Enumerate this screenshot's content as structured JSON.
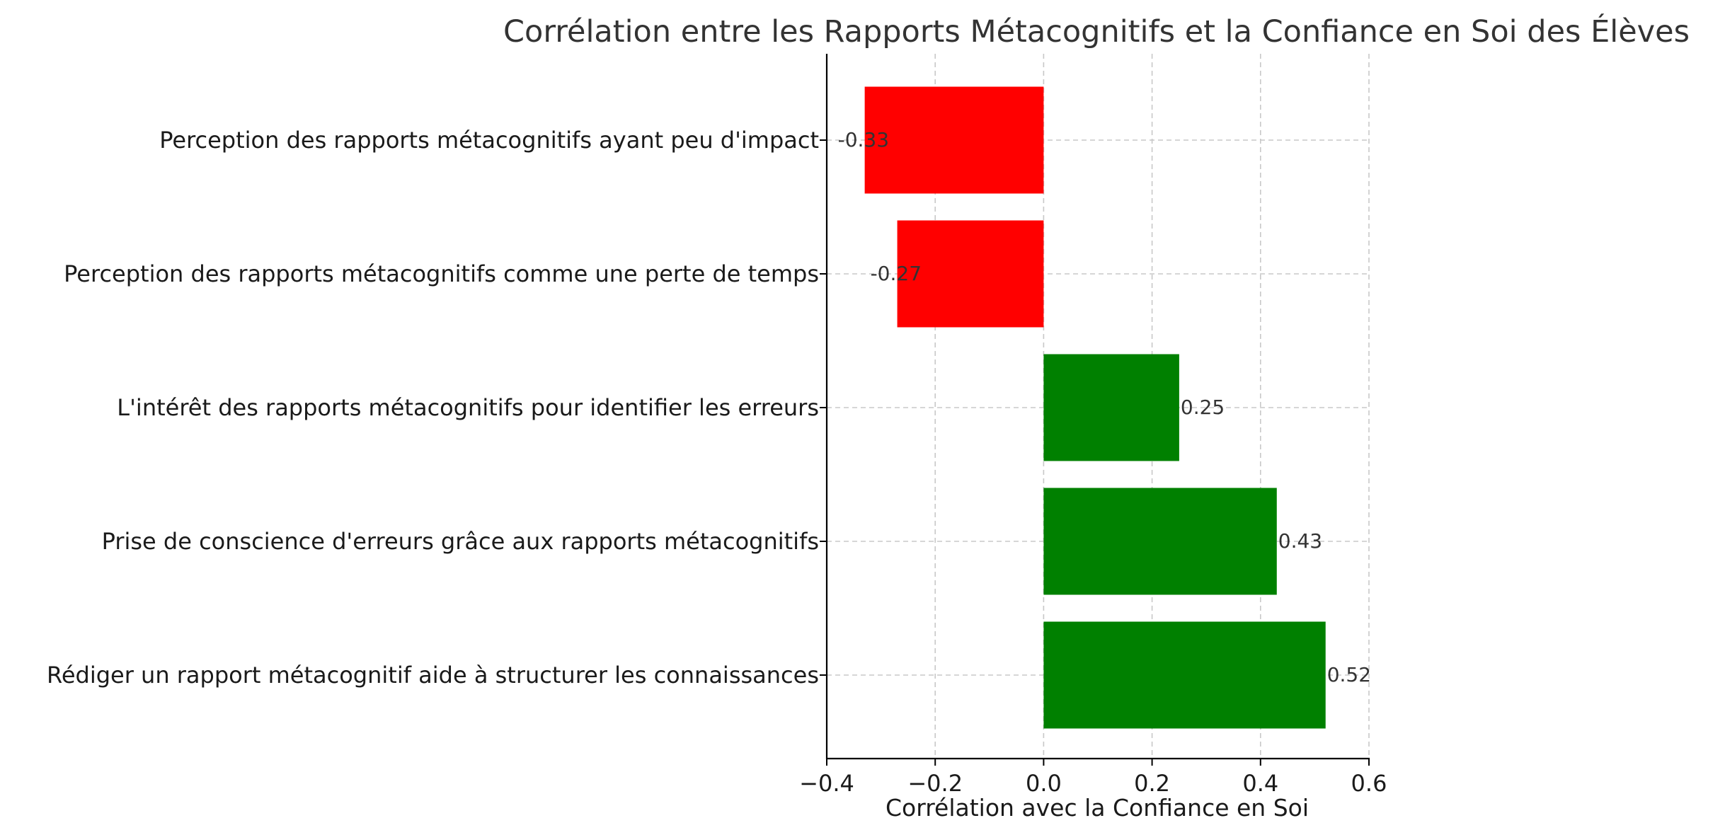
{
  "colors": {
    "positive": "#008000",
    "negative": "#ff0000"
  },
  "chart_data": {
    "type": "bar",
    "orientation": "horizontal",
    "title": "Corrélation entre les Rapports Métacognitifs et la Confiance en Soi des Élèves",
    "xlabel": "Corrélation avec la Confiance en Soi",
    "ylabel": "",
    "xlim": [
      -0.4,
      0.6
    ],
    "xticks": [
      -0.4,
      -0.2,
      0.0,
      0.2,
      0.4,
      0.6
    ],
    "xtick_labels": [
      "−0.4",
      "−0.2",
      "0.0",
      "0.2",
      "0.4",
      "0.6"
    ],
    "grid": true,
    "categories": [
      "Perception des rapports métacognitifs ayant peu d'impact",
      "Perception des rapports métacognitifs comme une perte de temps",
      "L'intérêt des rapports métacognitifs pour identifier les erreurs",
      "Prise de conscience d'erreurs grâce aux rapports métacognitifs",
      "Rédiger un rapport métacognitif aide à structurer les connaissances"
    ],
    "values": [
      -0.33,
      -0.27,
      0.25,
      0.43,
      0.52
    ],
    "value_labels": [
      "-0.33",
      "-0.27",
      "0.25",
      "0.43",
      "0.52"
    ]
  }
}
